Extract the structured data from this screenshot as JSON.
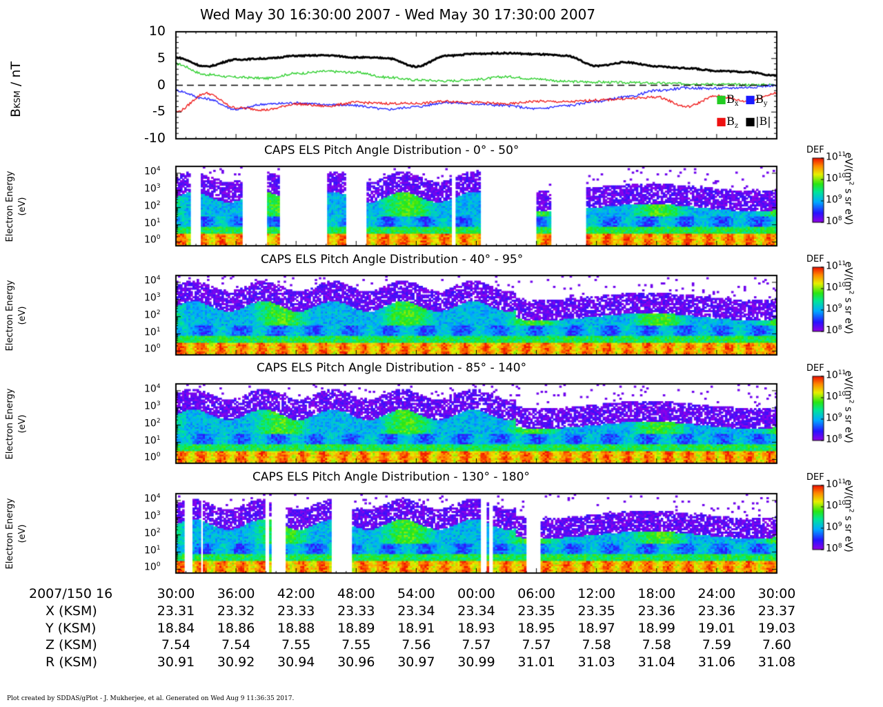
{
  "header": {
    "title": "Wed May 30 16:30:00 2007 - Wed May 30 17:30:00 2007"
  },
  "footer": {
    "text": "Plot created by SDDAS/gPlot - J. Mukherjee, et al.  Generated on Wed Aug 9 11:36:35 2017."
  },
  "chart_data": [
    {
      "type": "line",
      "ylabel": "B_KSM / nT",
      "ylim": [
        -10,
        10
      ],
      "yticks": [
        "10",
        "5",
        "0",
        "-5",
        "-10"
      ],
      "x_minutes": [
        0,
        3,
        6,
        9,
        12,
        15,
        18,
        21,
        24,
        27,
        30,
        33,
        36,
        39,
        42,
        45,
        48,
        51,
        54,
        57,
        60
      ],
      "zero_line": "dashed",
      "legend": "right",
      "series": [
        {
          "name": "Bx",
          "color": "#22cc22",
          "values": [
            4.0,
            2.0,
            1.5,
            1.3,
            2.2,
            2.6,
            2.4,
            1.5,
            1.0,
            0.8,
            1.1,
            1.6,
            1.2,
            0.7,
            0.6,
            0.5,
            0.4,
            0.3,
            0.2,
            0.1,
            0.1
          ]
        },
        {
          "name": "By",
          "color": "#1a1aff",
          "values": [
            -1.0,
            -2.5,
            -4.5,
            -3.5,
            -3.3,
            -3.6,
            -3.8,
            -4.5,
            -4.0,
            -3.2,
            -3.5,
            -3.8,
            -4.4,
            -3.8,
            -3.0,
            -2.2,
            -1.0,
            -0.5,
            -0.6,
            -0.4,
            0.0
          ]
        },
        {
          "name": "Bz",
          "color": "#ee1111",
          "values": [
            -5.0,
            -1.5,
            -4.2,
            -4.6,
            -3.5,
            -3.9,
            -3.2,
            -3.4,
            -3.4,
            -3.0,
            -3.2,
            -3.5,
            -3.0,
            -3.1,
            -2.8,
            -2.5,
            -2.2,
            -4.0,
            -2.0,
            -3.0,
            -1.5
          ]
        },
        {
          "name": "|B|",
          "color": "#000000",
          "values": [
            5.2,
            3.5,
            4.8,
            5.0,
            5.5,
            5.6,
            5.2,
            5.1,
            3.5,
            5.5,
            5.9,
            6.0,
            5.8,
            5.5,
            3.6,
            4.3,
            3.5,
            3.2,
            2.7,
            2.5,
            1.8
          ]
        }
      ]
    },
    {
      "type": "heatmap",
      "title": "CAPS ELS Pitch Angle Distribution - 0° - 50°",
      "ylabel": "Electron Energy (eV)",
      "y_scale": "log",
      "ylim": [
        0.6,
        25000
      ],
      "z_scale": "log",
      "zlim": [
        100000000.0,
        100000000000.0
      ],
      "z_label": "DEF",
      "z_units": "eV/(m² s sr eV)",
      "data_gaps_minutes": [
        [
          1.5,
          2.5
        ],
        [
          6.7,
          9.0
        ],
        [
          10.3,
          15.0
        ],
        [
          17.0,
          19.0
        ],
        [
          27.6,
          28.0
        ],
        [
          30.5,
          36.0
        ],
        [
          37.5,
          41.0
        ]
      ]
    },
    {
      "type": "heatmap",
      "title": "CAPS ELS Pitch Angle Distribution - 40° - 95°",
      "ylabel": "Electron Energy (eV)",
      "y_scale": "log",
      "ylim": [
        0.6,
        25000
      ],
      "z_scale": "log",
      "zlim": [
        100000000.0,
        100000000000.0
      ],
      "z_label": "DEF",
      "z_units": "eV/(m² s sr eV)",
      "data_gaps_minutes": []
    },
    {
      "type": "heatmap",
      "title": "CAPS ELS Pitch Angle Distribution - 85° - 140°",
      "ylabel": "Electron Energy (eV)",
      "y_scale": "log",
      "ylim": [
        0.6,
        25000
      ],
      "z_scale": "log",
      "zlim": [
        100000000.0,
        100000000000.0
      ],
      "z_label": "DEF",
      "z_units": "eV/(m² s sr eV)",
      "data_gaps_minutes": []
    },
    {
      "type": "heatmap",
      "title": "CAPS ELS Pitch Angle Distribution - 130° - 180°",
      "ylabel": "Electron Energy (eV)",
      "y_scale": "log",
      "ylim": [
        0.6,
        25000
      ],
      "z_scale": "log",
      "zlim": [
        100000000.0,
        100000000000.0
      ],
      "z_label": "DEF",
      "z_units": "eV/(m² s sr eV)",
      "data_gaps_minutes": [
        [
          0.8,
          1.7
        ],
        [
          2.4,
          2.6
        ],
        [
          8.9,
          9.3
        ],
        [
          9.5,
          11.0
        ],
        [
          15.5,
          17.5
        ],
        [
          30.4,
          31.0
        ],
        [
          31.3,
          31.6
        ],
        [
          35.0,
          36.5
        ]
      ]
    }
  ],
  "ephemeris": {
    "time_label": "2007/150 16",
    "times": [
      "30:00",
      "36:00",
      "42:00",
      "48:00",
      "54:00",
      "00:00",
      "06:00",
      "12:00",
      "18:00",
      "24:00",
      "30:00"
    ],
    "rows": [
      {
        "label": "X (KSM)",
        "values": [
          "23.31",
          "23.32",
          "23.33",
          "23.33",
          "23.34",
          "23.34",
          "23.35",
          "23.35",
          "23.36",
          "23.36",
          "23.37"
        ]
      },
      {
        "label": "Y (KSM)",
        "values": [
          "18.84",
          "18.86",
          "18.88",
          "18.89",
          "18.91",
          "18.93",
          "18.95",
          "18.97",
          "18.99",
          "19.01",
          "19.03"
        ]
      },
      {
        "label": "Z (KSM)",
        "values": [
          "7.54",
          "7.54",
          "7.55",
          "7.55",
          "7.56",
          "7.57",
          "7.57",
          "7.58",
          "7.58",
          "7.59",
          "7.60"
        ]
      },
      {
        "label": "R (KSM)",
        "values": [
          "30.91",
          "30.92",
          "30.94",
          "30.96",
          "30.97",
          "30.99",
          "31.01",
          "31.03",
          "31.04",
          "31.06",
          "31.08"
        ]
      }
    ]
  }
}
